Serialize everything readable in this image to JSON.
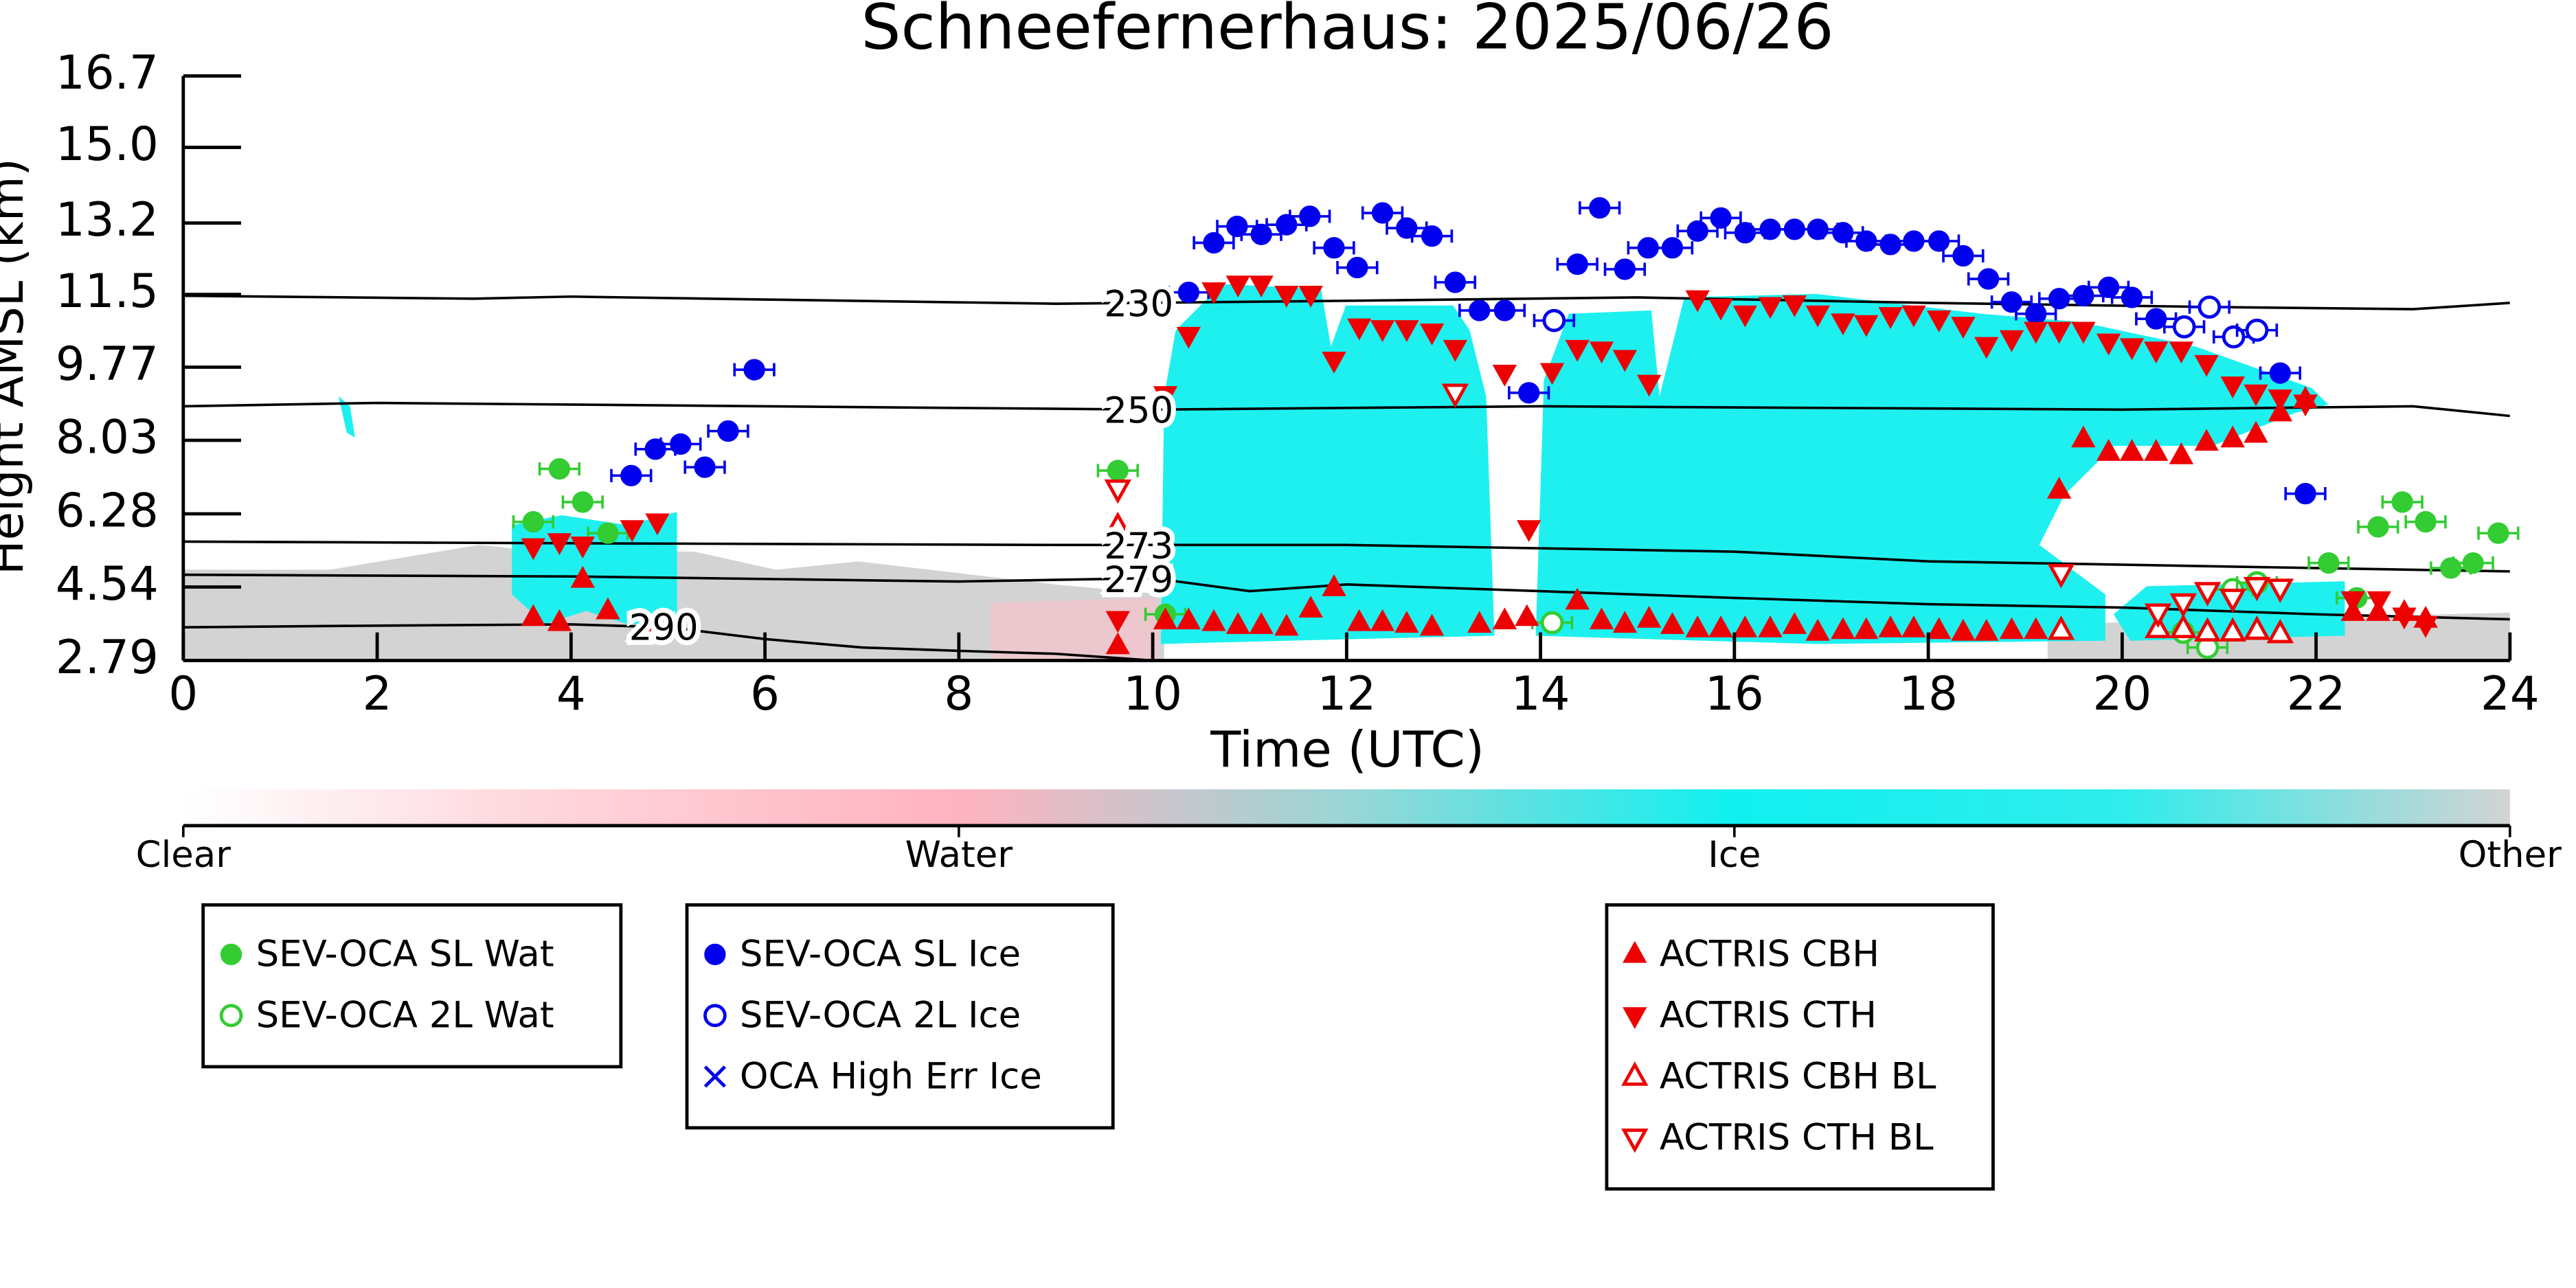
{
  "chart_data": {
    "type": "scatter",
    "title": "Schneefernerhaus: 2025/06/26",
    "x_label": "Time (UTC)",
    "y_label": "Height AMSL (km)",
    "xlim": [
      0,
      24
    ],
    "xticks": [
      0,
      2,
      4,
      6,
      8,
      10,
      12,
      14,
      16,
      18,
      20,
      22,
      24
    ],
    "ylim": [
      2.79,
      16.7
    ],
    "yticks": [
      2.79,
      4.54,
      6.28,
      8.03,
      9.77,
      11.5,
      13.2,
      {
        "value": 15,
        "label": "15.0"
      },
      16.7
    ],
    "colorbar": {
      "labels": [
        "Clear",
        "Water",
        "Ice",
        "Other"
      ],
      "colors": [
        "#ffffff",
        "#ffd3da",
        "#ffb3c0",
        "#9ad6d6",
        "#10f0f0",
        "#30ecec",
        "#d3d3d3"
      ]
    },
    "contours": [
      {
        "label": "230",
        "x": [
          0,
          3,
          4,
          6,
          9,
          12,
          15,
          18,
          21,
          23,
          24
        ],
        "y": [
          11.47,
          11.4,
          11.45,
          11.38,
          11.28,
          11.35,
          11.43,
          11.3,
          11.2,
          11.15,
          11.3
        ]
      },
      {
        "label": "250",
        "x": [
          0,
          2,
          6,
          10,
          14,
          20,
          23,
          24
        ],
        "y": [
          8.84,
          8.92,
          8.84,
          8.76,
          8.84,
          8.76,
          8.84,
          8.61
        ]
      },
      {
        "label": "273",
        "x": [
          0,
          4,
          9,
          12,
          16,
          18,
          22,
          24
        ],
        "y": [
          5.62,
          5.58,
          5.54,
          5.54,
          5.38,
          5.15,
          4.99,
          4.91
        ]
      },
      {
        "label": "279",
        "x": [
          0,
          4,
          8,
          10,
          11,
          12,
          14,
          16,
          18,
          20,
          22,
          24
        ],
        "y": [
          4.83,
          4.79,
          4.67,
          4.75,
          4.44,
          4.6,
          4.44,
          4.28,
          4.13,
          4.05,
          3.89,
          3.77
        ]
      },
      {
        "label": "290",
        "x": [
          0,
          2,
          4,
          5,
          6,
          7,
          8,
          9,
          10
        ],
        "y": [
          3.58,
          3.62,
          3.65,
          3.58,
          3.3,
          3.1,
          3.02,
          2.95,
          2.79
        ]
      }
    ],
    "series": [
      {
        "name": "SEV-OCA SL Wat",
        "color": "#33cc33",
        "marker": "circle",
        "x": [
          3.61,
          3.88,
          4.12,
          4.38,
          9.64,
          10.13,
          22.13,
          22.42,
          22.64,
          22.89,
          23.13,
          23.39,
          23.62,
          23.88
        ],
        "y": [
          6.09,
          7.35,
          6.56,
          5.82,
          7.31,
          3.89,
          5.11,
          4.28,
          5.97,
          6.56,
          6.09,
          4.99,
          5.11,
          5.82
        ]
      },
      {
        "name": "SEV-OCA 2L Wat",
        "color": "#33cc33",
        "marker": "circle-open",
        "x": [
          14.12,
          20.63,
          20.88,
          21.14,
          21.39
        ],
        "y": [
          3.69,
          3.46,
          3.1,
          4.48,
          4.64
        ]
      },
      {
        "name": "SEV-OCA SL Ice",
        "color": "#0000ee",
        "marker": "circle",
        "x": [
          4.62,
          4.87,
          5.13,
          5.38,
          5.62,
          5.89,
          10.37,
          10.63,
          10.87,
          11.12,
          11.38,
          11.62,
          11.87,
          12.11,
          12.37,
          12.62,
          12.88,
          13.12,
          13.37,
          13.63,
          13.88,
          14.38,
          14.61,
          14.87,
          15.11,
          15.36,
          15.62,
          15.86,
          16.11,
          16.37,
          16.62,
          16.86,
          17.12,
          17.36,
          17.61,
          17.85,
          18.11,
          18.36,
          18.62,
          18.86,
          19.11,
          19.35,
          19.6,
          19.86,
          20.1,
          20.35,
          21.63,
          21.89
        ],
        "y": [
          7.19,
          7.82,
          7.94,
          7.39,
          8.25,
          9.71,
          11.55,
          12.73,
          13.12,
          12.93,
          13.16,
          13.36,
          12.61,
          12.14,
          13.44,
          13.08,
          12.89,
          11.79,
          11.12,
          11.12,
          9.16,
          12.22,
          13.56,
          12.1,
          12.61,
          12.61,
          13.01,
          13.32,
          12.97,
          13.05,
          13.05,
          13.05,
          12.97,
          12.77,
          12.69,
          12.77,
          12.77,
          12.42,
          11.87,
          11.32,
          11.04,
          11.4,
          11.47,
          11.67,
          11.43,
          10.92,
          9.63,
          6.76
        ]
      },
      {
        "name": "SEV-OCA 2L Ice",
        "color": "#0000ee",
        "marker": "circle-open",
        "x": [
          14.14,
          20.64,
          20.9,
          21.15,
          21.39
        ],
        "y": [
          10.88,
          10.73,
          11.2,
          10.49,
          10.65
        ]
      },
      {
        "name": "OCA High Err Ice",
        "color": "#0000ee",
        "marker": "x",
        "x": [],
        "y": []
      },
      {
        "name": "ACTRIS CBH",
        "color": "#ee0000",
        "marker": "triangle-up",
        "x": [
          3.61,
          3.88,
          4.12,
          4.38,
          4.87,
          9.64,
          10.13,
          10.37,
          10.63,
          10.88,
          11.12,
          11.38,
          11.63,
          11.87,
          12.13,
          12.37,
          12.62,
          12.88,
          13.37,
          13.63,
          13.86,
          14.38,
          14.63,
          14.87,
          15.12,
          15.36,
          15.62,
          15.86,
          16.11,
          16.37,
          16.62,
          16.86,
          17.12,
          17.36,
          17.61,
          17.85,
          18.11,
          18.36,
          18.6,
          18.86,
          19.11,
          19.35,
          19.6,
          19.86,
          20.1,
          20.35,
          20.61,
          20.87,
          21.14,
          21.38,
          21.63,
          21.89,
          22.38,
          22.64,
          22.91,
          23.13
        ],
        "y": [
          3.81,
          3.69,
          4.72,
          3.97,
          3.69,
          3.14,
          3.73,
          3.73,
          3.69,
          3.62,
          3.62,
          3.58,
          4.01,
          4.52,
          3.69,
          3.69,
          3.65,
          3.58,
          3.65,
          3.73,
          3.81,
          4.2,
          3.73,
          3.65,
          3.77,
          3.62,
          3.54,
          3.54,
          3.54,
          3.54,
          3.62,
          3.46,
          3.5,
          3.5,
          3.54,
          3.54,
          3.5,
          3.46,
          3.46,
          3.5,
          3.5,
          6.84,
          8.06,
          7.74,
          7.74,
          7.74,
          7.66,
          7.98,
          8.06,
          8.17,
          8.68,
          9.0,
          3.93,
          3.93,
          3.93,
          3.77
        ]
      },
      {
        "name": "ACTRIS CTH",
        "color": "#ee0000",
        "marker": "triangle-down",
        "x": [
          3.61,
          3.88,
          4.12,
          4.63,
          4.89,
          9.64,
          10.13,
          10.37,
          10.63,
          10.88,
          11.12,
          11.38,
          11.63,
          11.87,
          12.13,
          12.37,
          12.62,
          12.88,
          13.12,
          13.63,
          13.88,
          14.12,
          14.38,
          14.63,
          14.87,
          15.12,
          15.62,
          15.86,
          16.11,
          16.37,
          16.62,
          16.86,
          17.12,
          17.36,
          17.61,
          17.85,
          18.11,
          18.36,
          18.6,
          18.86,
          19.11,
          19.35,
          19.6,
          19.86,
          20.1,
          20.35,
          20.61,
          20.87,
          21.14,
          21.38,
          21.63,
          21.89,
          22.38,
          22.65,
          22.91,
          23.13
        ],
        "y": [
          5.5,
          5.62,
          5.54,
          5.93,
          6.09,
          3.77,
          9.12,
          10.53,
          11.59,
          11.75,
          11.75,
          11.51,
          11.51,
          9.94,
          10.73,
          10.69,
          10.69,
          10.61,
          10.22,
          9.63,
          5.93,
          9.67,
          10.22,
          10.18,
          9.98,
          9.39,
          11.4,
          11.2,
          11.04,
          11.24,
          11.28,
          11.04,
          10.85,
          10.81,
          11.0,
          11.04,
          10.92,
          10.77,
          10.29,
          10.45,
          10.65,
          10.65,
          10.65,
          10.37,
          10.26,
          10.18,
          10.18,
          9.86,
          9.35,
          9.16,
          9.04,
          8.92,
          4.24,
          4.24,
          3.85,
          3.65
        ]
      },
      {
        "name": "ACTRIS CBH BL",
        "color": "#ee0000",
        "marker": "triangle-up-open",
        "x": [
          9.64,
          19.37,
          20.37,
          20.63,
          20.88,
          21.14,
          21.39,
          21.63
        ],
        "y": [
          5.97,
          3.5,
          3.54,
          3.54,
          3.46,
          3.46,
          3.5,
          3.42
        ]
      },
      {
        "name": "ACTRIS CTH BL",
        "color": "#ee0000",
        "marker": "triangle-down-open",
        "x": [
          9.64,
          13.12,
          19.37,
          20.37,
          20.63,
          20.88,
          21.14,
          21.39,
          21.63
        ],
        "y": [
          6.88,
          9.16,
          4.87,
          3.93,
          4.17,
          4.44,
          4.28,
          4.56,
          4.52
        ]
      }
    ]
  }
}
